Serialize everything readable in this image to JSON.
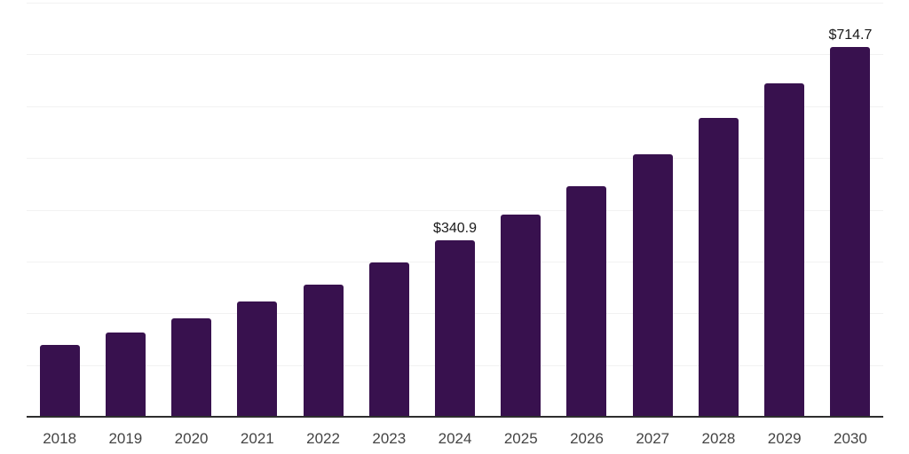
{
  "chart_data": {
    "type": "bar",
    "title": "",
    "xlabel": "",
    "ylabel": "",
    "categories": [
      "2018",
      "2019",
      "2020",
      "2021",
      "2022",
      "2023",
      "2024",
      "2025",
      "2026",
      "2027",
      "2028",
      "2029",
      "2030"
    ],
    "series": [
      {
        "name": "value-usd",
        "values": [
          138,
          162,
          190,
          222,
          256,
          298,
          340.9,
          391,
          446,
          507,
          577,
          644,
          714.7
        ]
      }
    ],
    "data_labels": [
      "",
      "",
      "",
      "",
      "",
      "",
      "$340.9",
      "",
      "",
      "",
      "",
      "",
      "$714.7"
    ],
    "ylim": [
      0,
      800
    ],
    "gridline_step": 100,
    "grid": true,
    "legend": false,
    "colors": {
      "bar": "#38114e",
      "gridline": "#f2f2f2",
      "axis": "#2e2e2e",
      "data_label": "#1a1a1a",
      "tick_label": "#444444",
      "background": "#ffffff"
    }
  }
}
